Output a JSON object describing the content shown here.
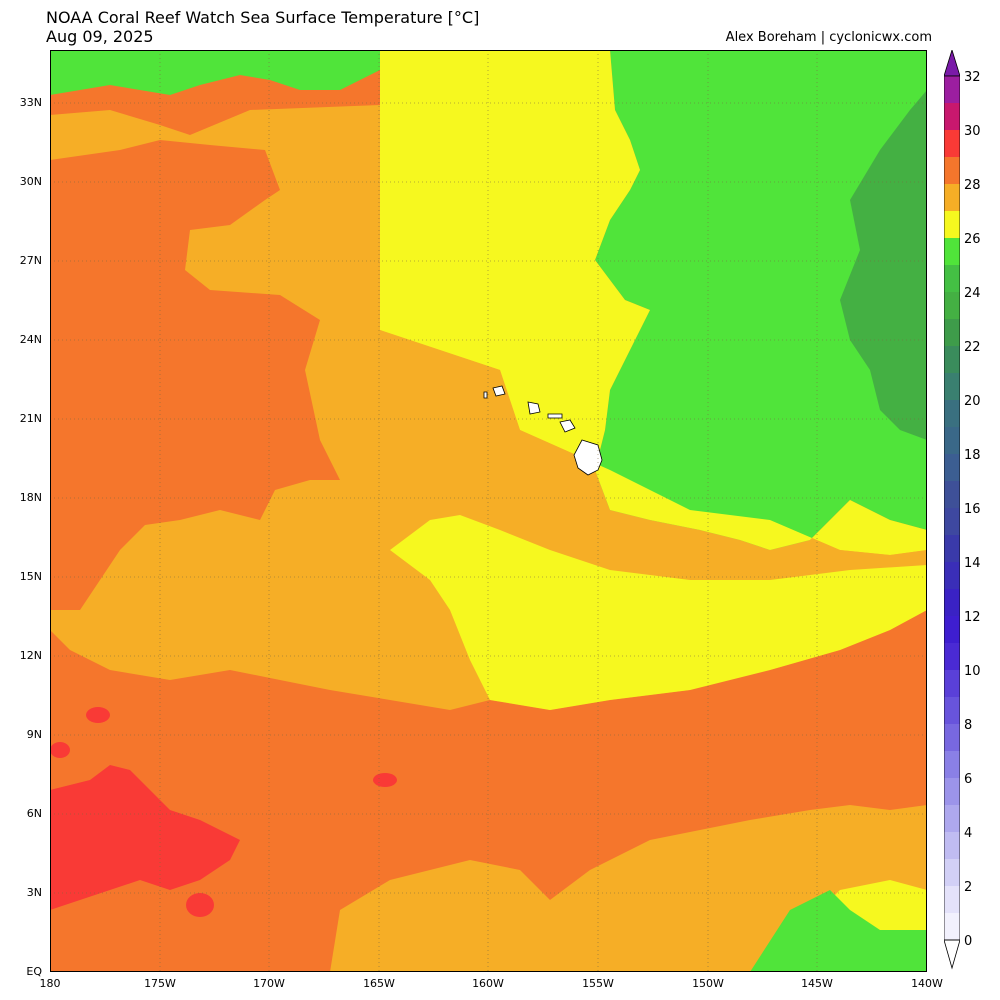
{
  "header": {
    "title": "NOAA Coral Reef Watch Sea Surface Temperature [°C]",
    "date": "Aug 09, 2025",
    "credit": "Alex Boreham | cyclonicwx.com"
  },
  "map": {
    "region": "Central North Pacific around Hawaii",
    "lon_range": [
      -180,
      -140
    ],
    "lat_range": [
      0,
      35
    ],
    "grid": true,
    "lat_ticks": [
      "EQ",
      "3N",
      "6N",
      "9N",
      "12N",
      "15N",
      "18N",
      "21N",
      "24N",
      "27N",
      "30N",
      "33N"
    ],
    "lon_ticks": [
      "180",
      "175W",
      "170W",
      "165W",
      "160W",
      "155W",
      "150W",
      "145W",
      "140W"
    ],
    "colors": {
      "c22_24": "#44b043",
      "c24_26": "#50e43a",
      "c26_27": "#f6f81f",
      "c27_28": "#f6ae26",
      "c28_29": "#f5762c",
      "c29_30": "#f93a36",
      "land": "#ffffff"
    }
  },
  "colorbar": {
    "labels": [
      "32",
      "30",
      "28",
      "26",
      "24",
      "22",
      "20",
      "18",
      "16",
      "14",
      "12",
      "10",
      "8",
      "6",
      "4",
      "2",
      "0"
    ],
    "extend": "both"
  }
}
